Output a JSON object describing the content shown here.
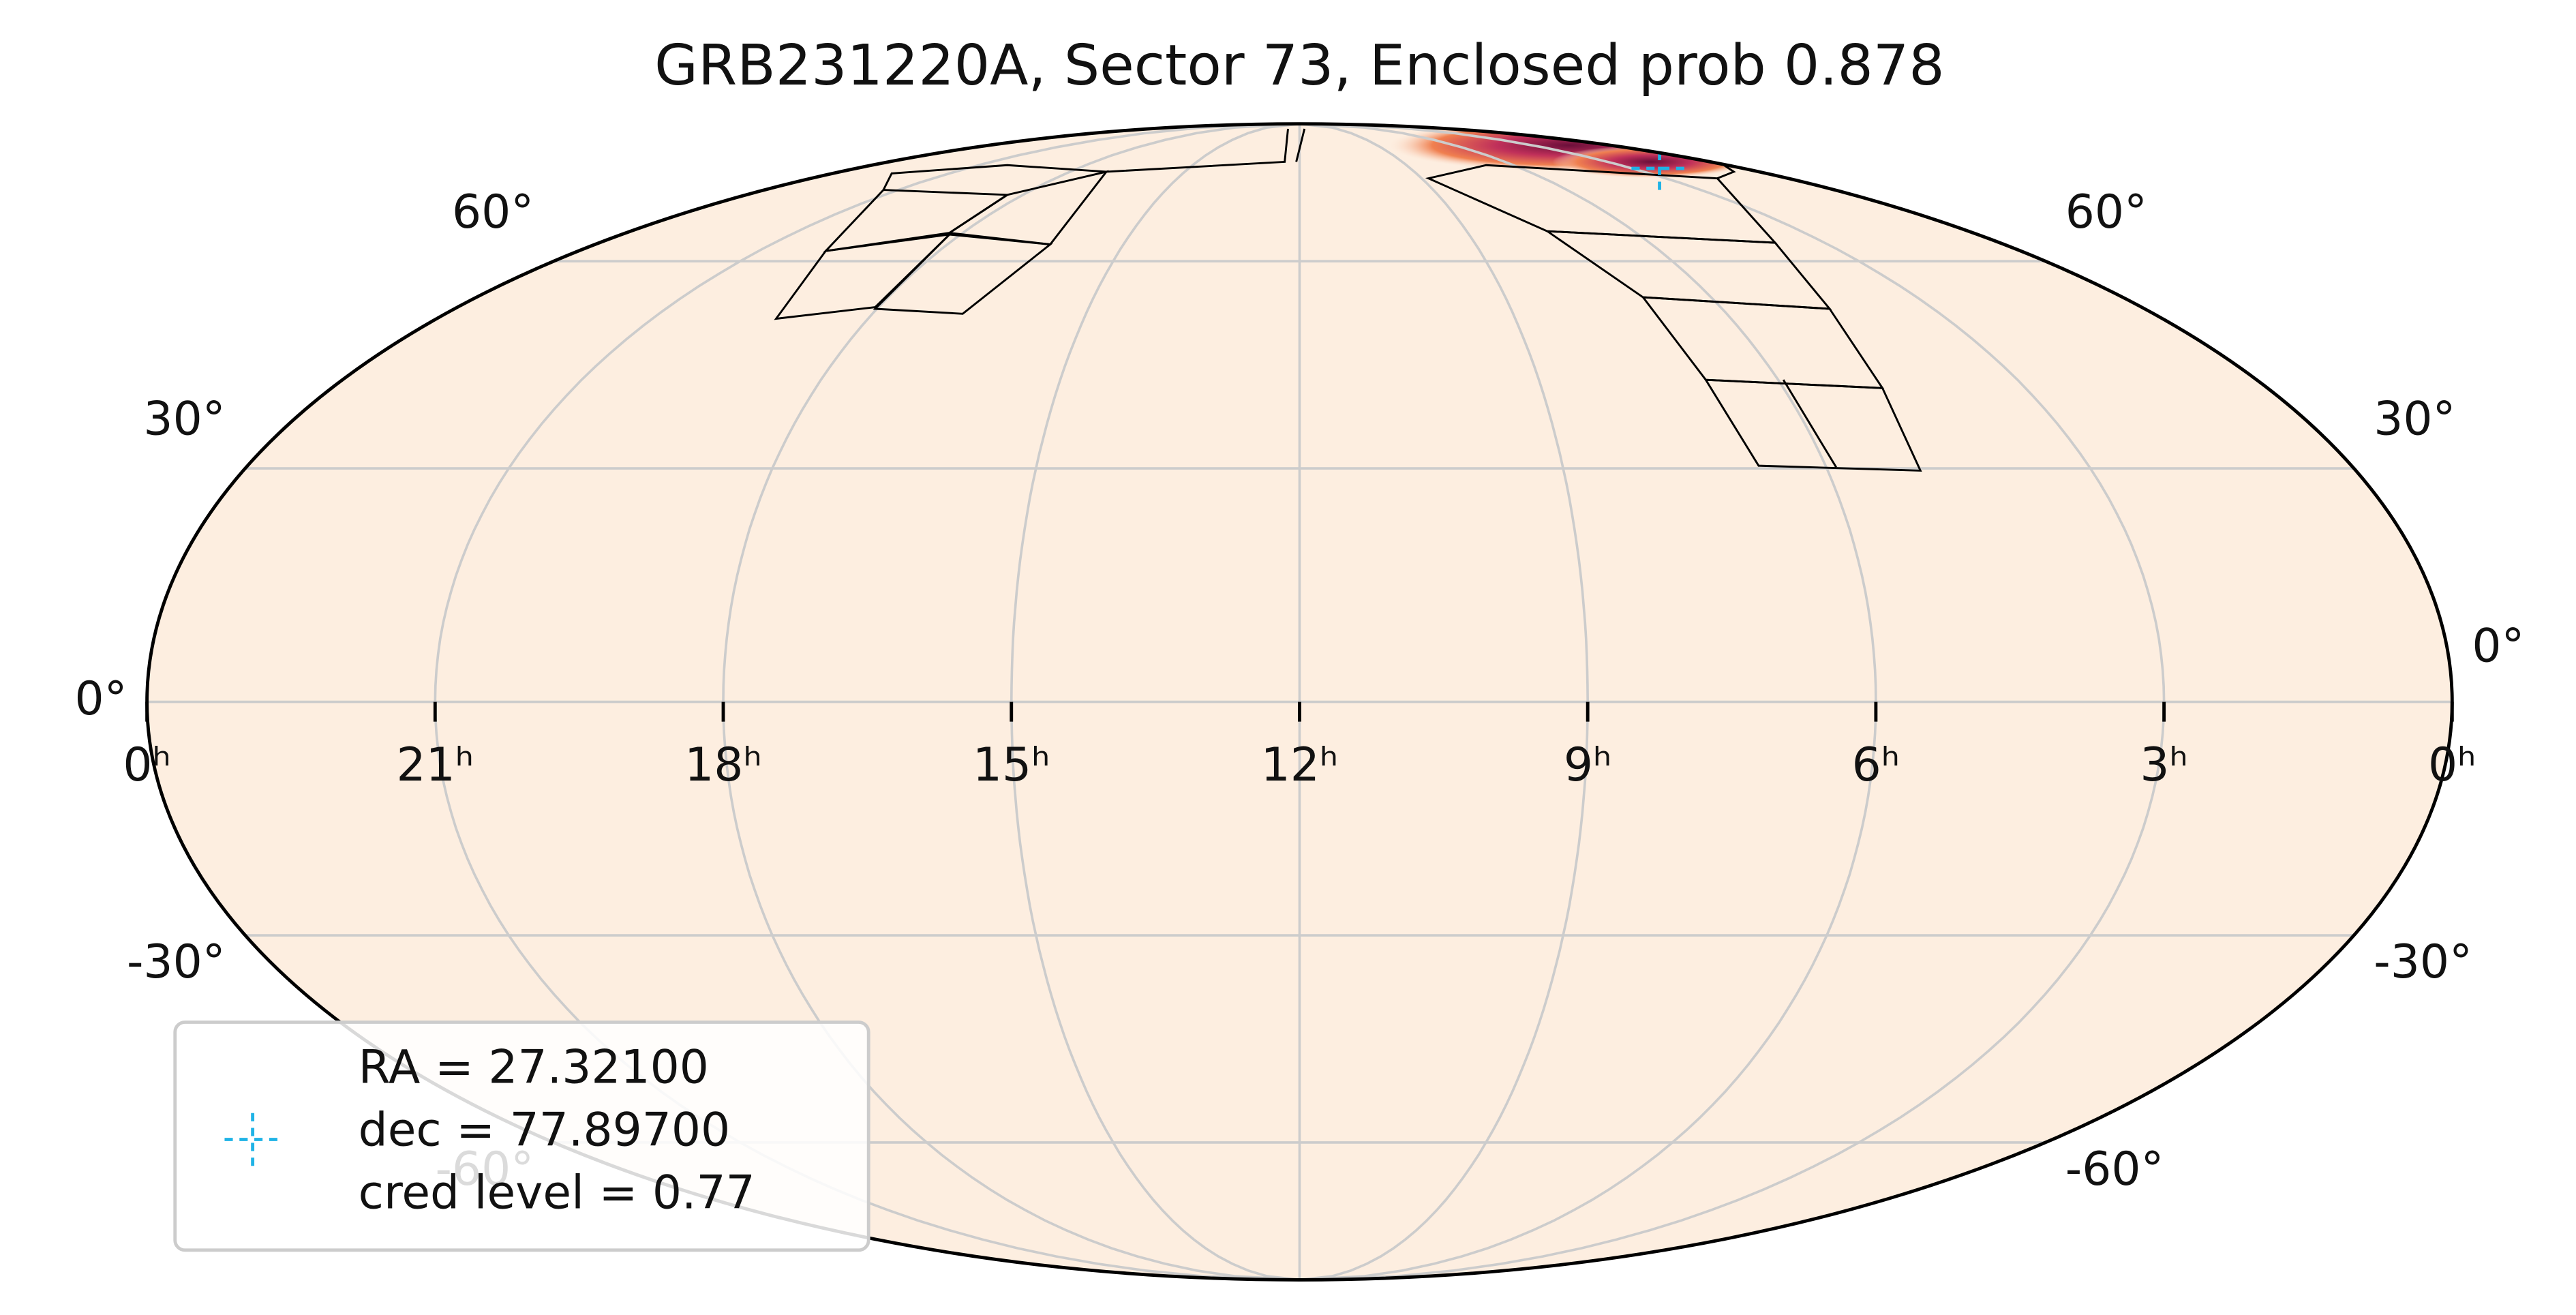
{
  "title": "GRB231220A, Sector 73, Enclosed prob 0.878",
  "ra_ticks": [
    {
      "value": 24,
      "label": "0ʰ"
    },
    {
      "value": 21,
      "label": "21ʰ"
    },
    {
      "value": 18,
      "label": "18ʰ"
    },
    {
      "value": 15,
      "label": "15ʰ"
    },
    {
      "value": 12,
      "label": "12ʰ"
    },
    {
      "value": 9,
      "label": "9ʰ"
    },
    {
      "value": 6,
      "label": "6ʰ"
    },
    {
      "value": 3,
      "label": "3ʰ"
    },
    {
      "value": 0,
      "label": "0ʰ"
    }
  ],
  "dec_ticks": [
    {
      "value": 60,
      "label": "60°"
    },
    {
      "value": 30,
      "label": "30°"
    },
    {
      "value": 0,
      "label": "0°"
    },
    {
      "value": -30,
      "label": "-30°"
    },
    {
      "value": -60,
      "label": "-60°"
    }
  ],
  "legend": [
    "RA = 27.32100",
    "dec = 77.89700",
    "cred level = 0.77"
  ]
}
